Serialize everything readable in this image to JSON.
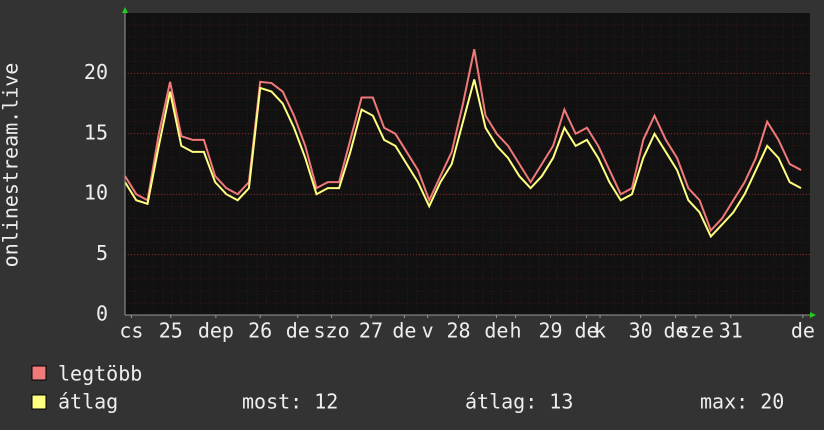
{
  "chart_data": {
    "type": "line",
    "ylabel": "onlinestream.live",
    "x": [
      0,
      3,
      6,
      9,
      12,
      15,
      18,
      21,
      24,
      27,
      30,
      33,
      36,
      39,
      42,
      45,
      48,
      51,
      54,
      57,
      60,
      63,
      66,
      69,
      72,
      75,
      78,
      81,
      84,
      87,
      90,
      93,
      96,
      99,
      102,
      105,
      108,
      111,
      114,
      117,
      120,
      123,
      126,
      129,
      132,
      135,
      138,
      141,
      144,
      147,
      150,
      153,
      156,
      159,
      162,
      165,
      168,
      171,
      174,
      177,
      180
    ],
    "xlim": [
      0,
      182.4
    ],
    "xticks": [
      {
        "value": 1.7,
        "label": "cs"
      },
      {
        "value": 12.2,
        "label": "25"
      },
      {
        "value": 24.2,
        "label": "dep"
      },
      {
        "value": 36,
        "label": "26"
      },
      {
        "value": 46,
        "label": "de"
      },
      {
        "value": 55,
        "label": "szo"
      },
      {
        "value": 65.5,
        "label": "27"
      },
      {
        "value": 74.4,
        "label": "de"
      },
      {
        "value": 80.6,
        "label": "v"
      },
      {
        "value": 88.8,
        "label": "28"
      },
      {
        "value": 98.9,
        "label": "de"
      },
      {
        "value": 104,
        "label": "h"
      },
      {
        "value": 113.3,
        "label": "29"
      },
      {
        "value": 122.9,
        "label": "de"
      },
      {
        "value": 126.5,
        "label": "k"
      },
      {
        "value": 137.3,
        "label": "30"
      },
      {
        "value": 146.6,
        "label": "de"
      },
      {
        "value": 152,
        "label": "sze"
      },
      {
        "value": 161.3,
        "label": "31"
      },
      {
        "value": 180.5,
        "label": "de"
      }
    ],
    "ylim": [
      0,
      25
    ],
    "yticks": [
      0,
      5,
      10,
      15,
      20
    ],
    "grid": true,
    "series": [
      {
        "name": "legtöbb",
        "color": "#f07a7a",
        "values": [
          11.5,
          10,
          9.5,
          15,
          19.3,
          14.8,
          14.5,
          14.5,
          11.5,
          10.5,
          10,
          11,
          19.3,
          19.2,
          18.5,
          16.5,
          14,
          10.5,
          11,
          11,
          14.5,
          18,
          18,
          15.5,
          15,
          13.5,
          12,
          9.5,
          11.5,
          13.5,
          17.5,
          22,
          16.5,
          15,
          14,
          12.5,
          11,
          12.5,
          14,
          17,
          15,
          15.5,
          14,
          12,
          10,
          10.5,
          14.5,
          16.5,
          14.5,
          13,
          10.5,
          9.5,
          7,
          8,
          9.5,
          11,
          13,
          16,
          14.5,
          12.5,
          12
        ]
      },
      {
        "name": "átlag",
        "color": "#ffff80",
        "values": [
          11,
          9.5,
          9.2,
          14,
          18.5,
          14,
          13.5,
          13.5,
          11,
          10,
          9.5,
          10.5,
          18.8,
          18.5,
          17.5,
          15.5,
          13,
          10,
          10.5,
          10.5,
          13.5,
          17,
          16.5,
          14.5,
          14,
          12.5,
          11,
          9,
          11,
          12.5,
          16,
          19.5,
          15.5,
          14,
          13,
          11.5,
          10.5,
          11.5,
          13,
          15.5,
          14,
          14.5,
          13,
          11,
          9.5,
          10,
          13,
          15,
          13.5,
          12,
          9.5,
          8.5,
          6.5,
          7.5,
          8.5,
          10,
          12,
          14,
          13,
          11,
          10.5
        ]
      }
    ],
    "stats": [
      "most: 12",
      "átlag: 13",
      "max: 20"
    ]
  }
}
